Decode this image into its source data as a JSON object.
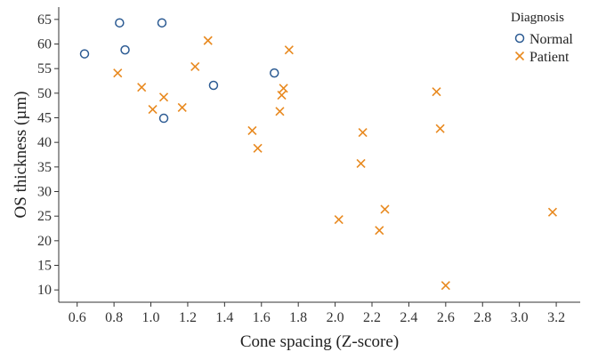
{
  "chart_data": {
    "type": "scatter",
    "title": "",
    "xlabel": "Cone spacing (Z-score)",
    "ylabel": "OS thickness (µm)",
    "xlim": [
      0.5,
      3.33
    ],
    "ylim": [
      7.5,
      67.5
    ],
    "x_ticks": [
      0.6,
      0.8,
      1.0,
      1.2,
      1.4,
      1.6,
      1.8,
      2.0,
      2.2,
      2.4,
      2.6,
      2.8,
      3.0,
      3.2
    ],
    "x_tick_labels": [
      "0.6",
      "0.8",
      "1.0",
      "1.2",
      "1.4",
      "1.6",
      "1.8",
      "2.0",
      "2.2",
      "2.4",
      "2.6",
      "2.8",
      "3.0",
      "3.2"
    ],
    "y_ticks": [
      10,
      15,
      20,
      25,
      30,
      35,
      40,
      45,
      50,
      55,
      60,
      65
    ],
    "y_tick_labels": [
      "10",
      "15",
      "20",
      "25",
      "30",
      "35",
      "40",
      "45",
      "50",
      "55",
      "60",
      "65"
    ],
    "grid": false,
    "legend": {
      "title": "Diagnosis",
      "position": "top-right"
    },
    "series": [
      {
        "name": "Normal",
        "marker": "circle",
        "color": "#2c5b93",
        "points": [
          [
            0.64,
            58.0
          ],
          [
            0.83,
            64.3
          ],
          [
            0.86,
            58.8
          ],
          [
            1.06,
            64.3
          ],
          [
            1.07,
            44.9
          ],
          [
            1.34,
            51.6
          ],
          [
            1.67,
            54.1
          ]
        ]
      },
      {
        "name": "Patient",
        "marker": "x",
        "color": "#e8891f",
        "points": [
          [
            0.82,
            54.1
          ],
          [
            0.95,
            51.2
          ],
          [
            1.01,
            46.7
          ],
          [
            1.07,
            49.2
          ],
          [
            1.17,
            47.1
          ],
          [
            1.24,
            55.4
          ],
          [
            1.31,
            60.7
          ],
          [
            1.55,
            42.4
          ],
          [
            1.58,
            38.8
          ],
          [
            1.7,
            46.3
          ],
          [
            1.71,
            49.6
          ],
          [
            1.72,
            51.0
          ],
          [
            1.75,
            58.8
          ],
          [
            2.02,
            24.3
          ],
          [
            2.14,
            35.7
          ],
          [
            2.15,
            42.0
          ],
          [
            2.24,
            22.1
          ],
          [
            2.27,
            26.4
          ],
          [
            2.55,
            50.3
          ],
          [
            2.57,
            42.8
          ],
          [
            2.6,
            10.9
          ],
          [
            3.18,
            25.8
          ]
        ]
      }
    ]
  }
}
